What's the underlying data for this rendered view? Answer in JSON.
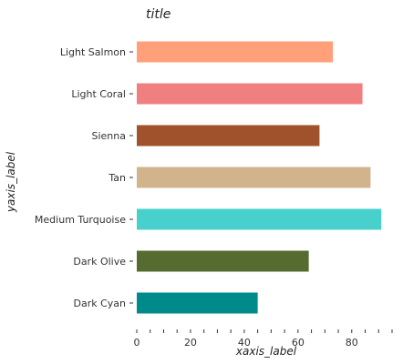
{
  "chart_data": {
    "type": "bar",
    "orientation": "horizontal",
    "title": "title",
    "xlabel": "xaxis_label",
    "ylabel": "yaxis_label",
    "xlim": [
      0,
      95
    ],
    "xticks": [
      0,
      20,
      40,
      60,
      80
    ],
    "grid": false,
    "legend": "none",
    "categories": [
      "Dark Cyan",
      "Dark Olive",
      "Medium Turquoise",
      "Tan",
      "Sienna",
      "Light Coral",
      "Light Salmon"
    ],
    "values": [
      45,
      64,
      91,
      87,
      68,
      84,
      73
    ],
    "colors": [
      "#008b8b",
      "#556b2f",
      "#48d1cc",
      "#d2b48c",
      "#a0522d",
      "#f08080",
      "#ffa07a"
    ]
  }
}
